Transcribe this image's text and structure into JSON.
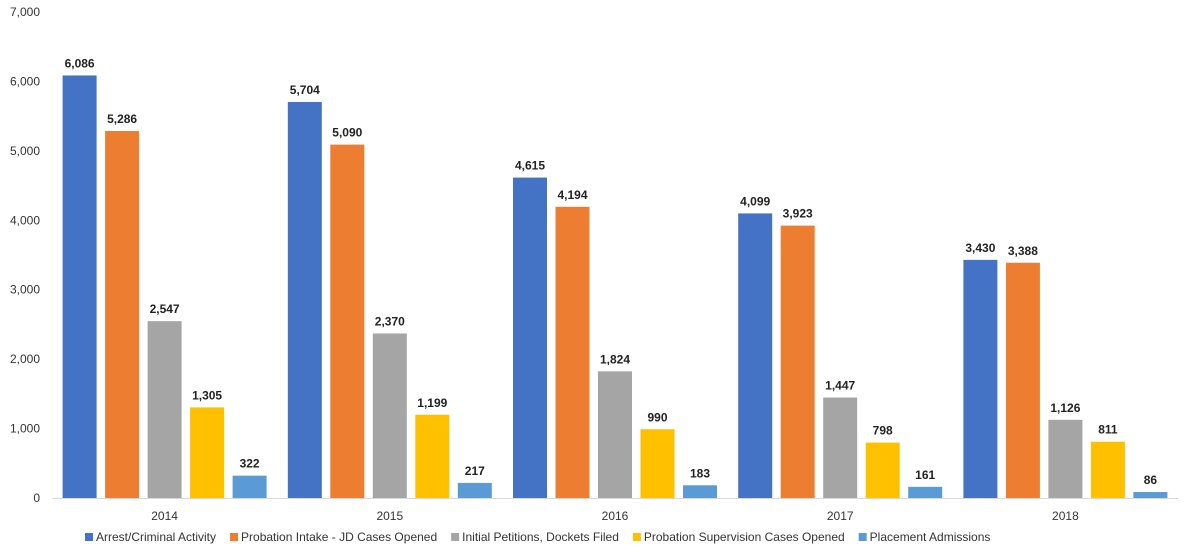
{
  "chart_data": {
    "type": "bar",
    "categories": [
      "2014",
      "2015",
      "2016",
      "2017",
      "2018"
    ],
    "series": [
      {
        "name": "Arrest/Criminal Activity",
        "color": "#4472C4",
        "values": [
          6086,
          5704,
          4615,
          4099,
          3430
        ],
        "labels": [
          "6,086",
          "5,704",
          "4,615",
          "4,099",
          "3,430"
        ]
      },
      {
        "name": "Probation Intake - JD Cases Opened",
        "color": "#ED7D31",
        "values": [
          5286,
          5090,
          4194,
          3923,
          3388
        ],
        "labels": [
          "5,286",
          "5,090",
          "4,194",
          "3,923",
          "3,388"
        ]
      },
      {
        "name": "Initial Petitions, Dockets Filed",
        "color": "#A5A5A5",
        "values": [
          2547,
          2370,
          1824,
          1447,
          1126
        ],
        "labels": [
          "2,547",
          "2,370",
          "1,824",
          "1,447",
          "1,126"
        ]
      },
      {
        "name": "Probation Supervision Cases Opened",
        "color": "#FFC000",
        "values": [
          1305,
          1199,
          990,
          798,
          811
        ],
        "labels": [
          "1,305",
          "1,199",
          "990",
          "798",
          "811"
        ]
      },
      {
        "name": "Placement Admissions",
        "color": "#5B9BD5",
        "values": [
          322,
          217,
          183,
          161,
          86
        ],
        "labels": [
          "322",
          "217",
          "183",
          "161",
          "86"
        ]
      }
    ],
    "yticks": [
      0,
      1000,
      2000,
      3000,
      4000,
      5000,
      6000,
      7000
    ],
    "ytick_labels": [
      "0",
      "1,000",
      "2,000",
      "3,000",
      "4,000",
      "5,000",
      "6,000",
      "7,000"
    ],
    "ylim": [
      0,
      7000
    ],
    "grid": false,
    "legend_position": "bottom"
  }
}
